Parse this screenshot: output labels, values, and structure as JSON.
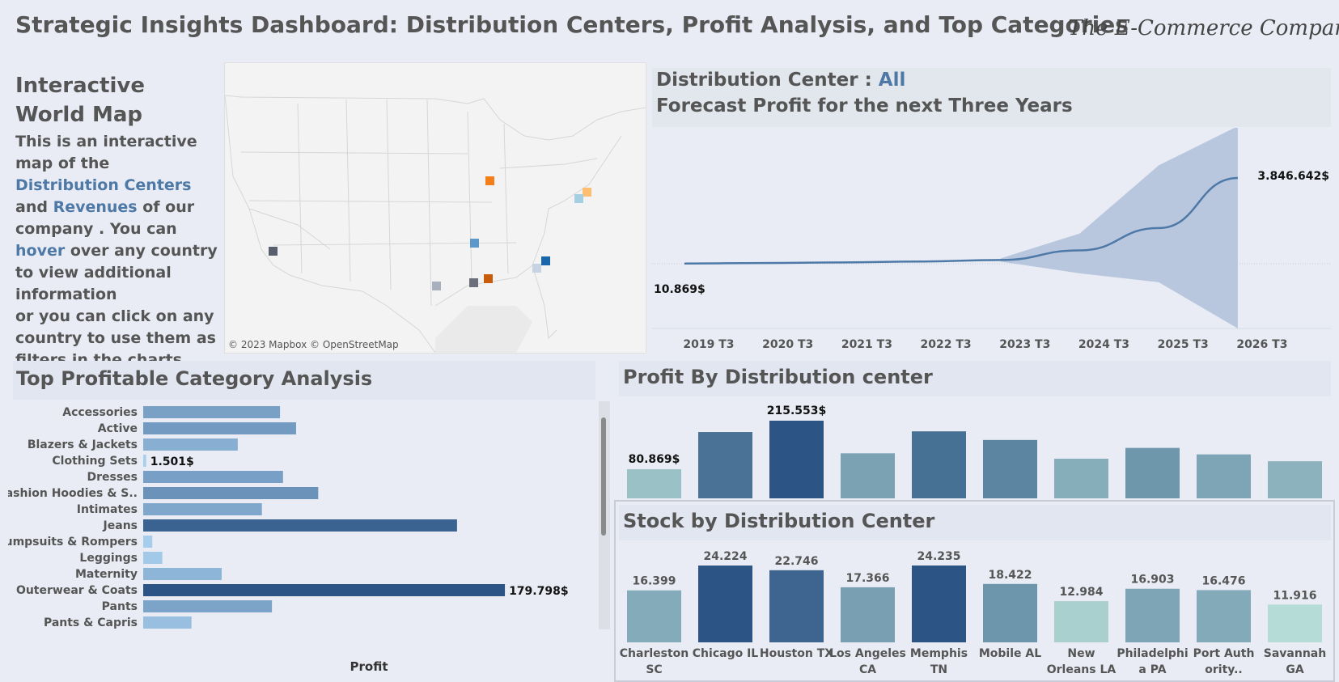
{
  "header": {
    "title": "Strategic Insights Dashboard: Distribution Centers, Profit Analysis, and Top Categories",
    "brand": "The E-Commerce Company"
  },
  "intro": {
    "heading": "Interactive World Map",
    "p1_a": "This is an interactive map of the ",
    "p1_link1": "Distribution Centers",
    "p1_and": " and ",
    "p1_link2": "Revenues",
    "p1_b": " of our company . You can ",
    "p1_link3": "hover",
    "p1_c": " over any country to view additional information",
    "p2": "or you can click on any country to use them as filters in the charts belo.."
  },
  "map": {
    "credit": "© 2023 Mapbox © OpenStreetMap",
    "pin_colors": [
      "#f47e17",
      "#fdbf6f",
      "#a6cee3",
      "#5e97c9",
      "#5a5f6e",
      "#1a66ad",
      "#c7d3e3",
      "#a8b0bd",
      "#6b6f7a",
      "#c95c0a"
    ]
  },
  "forecast": {
    "label": "Distribution Center :",
    "filter_value": "All",
    "subtitle": "Forecast Profit for the next Three Years",
    "start_label": "10.869$",
    "end_label": "3.846.642$",
    "x_ticks": [
      "2019 T3",
      "2020 T3",
      "2021 T3",
      "2022 T3",
      "2023 T3",
      "2024 T3",
      "2025 T3",
      "2026 T3"
    ]
  },
  "categories": {
    "title": "Top Profitable Category Analysis",
    "axis_label": "Profit"
  },
  "profit_by_dc": {
    "title": "Profit By Distribution center"
  },
  "stock_by_dc": {
    "title": "Stock by Distribution Center"
  },
  "chart_data": [
    {
      "type": "line",
      "title": "Forecast Profit for the next Three Years",
      "x": [
        "2019 T3",
        "2020 T3",
        "2021 T3",
        "2022 T3",
        "2023 T3",
        "2024 T3",
        "2025 T3",
        "2026 T3"
      ],
      "series": [
        {
          "values": [
            10869,
            30000,
            60000,
            100000,
            170000,
            600000,
            1600000,
            3846642
          ]
        }
      ],
      "annotations": [
        "10.869$",
        "3.846.642$"
      ],
      "forecast_start": "2023 T3",
      "band": "widening confidence band after 2023 T3"
    },
    {
      "type": "bar",
      "orientation": "horizontal",
      "title": "Top Profitable Category Analysis",
      "xlabel": "Profit",
      "categories": [
        "Accessories",
        "Active",
        "Blazers & Jackets",
        "Clothing Sets",
        "Dresses",
        "Fashion Hoodies & S..",
        "Intimates",
        "Jeans",
        "Jumpsuits & Rompers",
        "Leggings",
        "Maternity",
        "Outerwear & Coats",
        "Pants",
        "Pants & Capris"
      ],
      "values": [
        68000,
        76000,
        47000,
        1501,
        69500,
        87000,
        59000,
        156000,
        4500,
        9500,
        39000,
        179798,
        64000,
        24000
      ],
      "data_labels": {
        "Clothing Sets": "1.501$",
        "Outerwear & Coats": "179.798$"
      },
      "xlim": [
        0,
        185000
      ]
    },
    {
      "type": "bar",
      "title": "Profit By Distribution center",
      "categories": [
        "Charleston SC",
        "Chicago IL",
        "Houston TX",
        "Los Angeles CA",
        "Memphis TN",
        "Mobile AL",
        "New Orleans LA",
        "Philadelphia PA",
        "Port Authority..",
        "Savannah GA"
      ],
      "values": [
        80869,
        184000,
        215553,
        125000,
        186000,
        162000,
        110000,
        140000,
        122000,
        103000
      ],
      "data_labels": {
        "Charleston SC": "80.869$",
        "Houston TX": "215.553$"
      },
      "ylim": [
        0,
        215553
      ]
    },
    {
      "type": "bar",
      "title": "Stock by Distribution Center",
      "categories": [
        "Charleston SC",
        "Chicago IL",
        "Houston TX",
        "Los Angeles CA",
        "Memphis TN",
        "Mobile AL",
        "New Orleans LA",
        "Philadelphia PA",
        "Port Authority..",
        "Savannah GA"
      ],
      "category_labels": [
        [
          "Charleston",
          "SC"
        ],
        [
          "Chicago IL"
        ],
        [
          "Houston TX"
        ],
        [
          "Los Angeles",
          "CA"
        ],
        [
          "Memphis",
          "TN"
        ],
        [
          "Mobile AL"
        ],
        [
          "New",
          "Orleans LA"
        ],
        [
          "Philadelphi",
          "a PA"
        ],
        [
          "Port Auth",
          "ority.."
        ],
        [
          "Savannah",
          "GA"
        ]
      ],
      "values": [
        16399,
        24224,
        22746,
        17366,
        24235,
        18422,
        12984,
        16903,
        16476,
        11916
      ],
      "value_labels": [
        "16.399",
        "24.224",
        "22.746",
        "17.366",
        "24.235",
        "18.422",
        "12.984",
        "16.903",
        "16.476",
        "11.916"
      ],
      "ylim": [
        0,
        24235
      ]
    }
  ]
}
